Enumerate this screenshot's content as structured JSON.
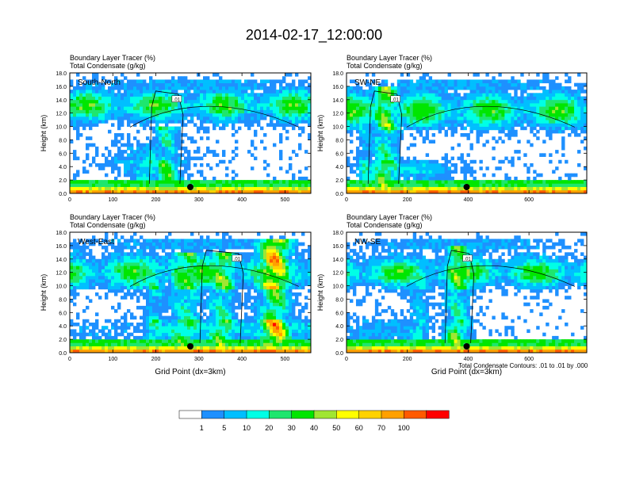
{
  "title": "2014-02-17_12:00:00",
  "palette": [
    "#ffffff",
    "#1e90ff",
    "#00bfff",
    "#00ffe6",
    "#1ee66e",
    "#00e600",
    "#a0e632",
    "#ffff00",
    "#ffd200",
    "#ffa000",
    "#ff5a00",
    "#ff0000"
  ],
  "colorbar_labels": [
    "1",
    "5",
    "10",
    "20",
    "30",
    "40",
    "50",
    "60",
    "70",
    "100"
  ],
  "footnote": "Total Condensate Contours: .01 to .01 by .000",
  "chart_data": [
    {
      "type": "heatmap",
      "id": "p1",
      "subtitle1": "Boundary Layer Tracer   (%)",
      "subtitle2": "Total Condensate   (g/kg)",
      "panel_label": "South-North",
      "ylabel": "Height (km)",
      "xlabel": "",
      "xlim": [
        0,
        560
      ],
      "ylim": [
        0,
        18
      ],
      "xticks": [
        "0",
        "100",
        "200",
        "300",
        "400",
        "500"
      ],
      "yticks": [
        "0.0",
        "2.0",
        "4.0",
        "6.0",
        "8.0",
        "10.0",
        "12.0",
        "14.0",
        "16.0",
        "18.0"
      ],
      "contour_label": ".01",
      "marker_x": 280
    },
    {
      "type": "heatmap",
      "id": "p2",
      "subtitle1": "Boundary Layer Tracer   (%)",
      "subtitle2": "Total Condensate   (g/kg)",
      "panel_label": "SW-NE",
      "ylabel": "Height (km)",
      "xlabel": "",
      "xlim": [
        0,
        790
      ],
      "ylim": [
        0,
        18
      ],
      "xticks": [
        "0",
        "200",
        "400",
        "600"
      ],
      "yticks": [
        "0.0",
        "2.0",
        "4.0",
        "6.0",
        "8.0",
        "10.0",
        "12.0",
        "14.0",
        "16.0",
        "18.0"
      ],
      "contour_label": ".01",
      "marker_x": 395
    },
    {
      "type": "heatmap",
      "id": "p3",
      "subtitle1": "Boundary Layer Tracer   (%)",
      "subtitle2": "Total Condensate   (g/kg)",
      "panel_label": "West-East",
      "ylabel": "Height (km)",
      "xlabel": "Grid Point (dx=3km)",
      "xlim": [
        0,
        560
      ],
      "ylim": [
        0,
        18
      ],
      "xticks": [
        "0",
        "100",
        "200",
        "300",
        "400",
        "500"
      ],
      "yticks": [
        "0.0",
        "2.0",
        "4.0",
        "6.0",
        "8.0",
        "10.0",
        "12.0",
        "14.0",
        "16.0",
        "18.0"
      ],
      "contour_label": ".01",
      "marker_x": 280
    },
    {
      "type": "heatmap",
      "id": "p4",
      "subtitle1": "Boundary Layer Tracer   (%)",
      "subtitle2": "Total Condensate   (g/kg)",
      "panel_label": "NW-SE",
      "ylabel": "Height (km)",
      "xlabel": "Grid Point (dx=3km)",
      "xlim": [
        0,
        790
      ],
      "ylim": [
        0,
        18
      ],
      "xticks": [
        "0",
        "200",
        "400",
        "600"
      ],
      "yticks": [
        "0.0",
        "2.0",
        "4.0",
        "6.0",
        "8.0",
        "10.0",
        "12.0",
        "14.0",
        "16.0",
        "18.0"
      ],
      "contour_label": ".01",
      "marker_x": 395
    }
  ]
}
